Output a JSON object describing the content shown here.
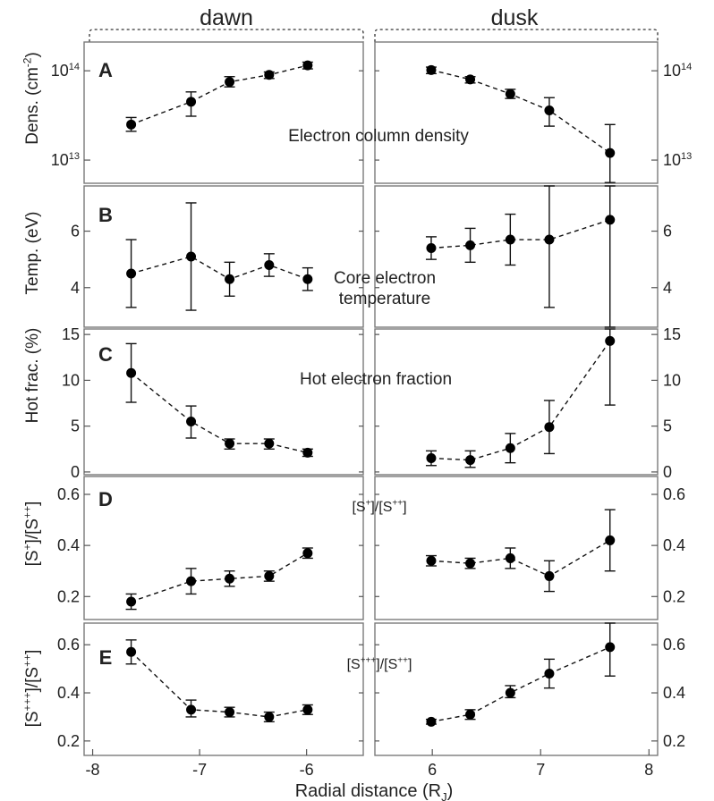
{
  "chart_data": [
    {
      "type": "scatter",
      "panel_letter": "A",
      "ylabel": "Dens. (cm⁻²)",
      "title": "Electron column density",
      "yscale": "log",
      "ylim": [
        5500000000000.0,
        210000000000000.0
      ],
      "yticks": [
        10000000000000.0,
        100000000000000.0
      ],
      "ytick_labels": [
        "10¹³",
        "10¹⁴"
      ],
      "dawn": {
        "x": [
          -7.64,
          -7.08,
          -6.72,
          -6.35,
          -5.99
        ],
        "y": [
          25000000000000.0,
          45000000000000.0,
          75000000000000.0,
          90000000000000.0,
          115000000000000.0
        ],
        "yerr_low": [
          21000000000000.0,
          31000000000000.0,
          66000000000000.0,
          82000000000000.0,
          105000000000000.0
        ],
        "yerr_high": [
          30000000000000.0,
          58000000000000.0,
          86000000000000.0,
          97000000000000.0,
          125000000000000.0
        ]
      },
      "dusk": {
        "x": [
          5.99,
          6.35,
          6.72,
          7.08,
          7.64
        ],
        "y": [
          102000000000000.0,
          80000000000000.0,
          55000000000000.0,
          36000000000000.0,
          12000000000000.0
        ],
        "yerr_low": [
          93000000000000.0,
          73000000000000.0,
          49000000000000.0,
          24000000000000.0,
          5600000000000.0
        ],
        "yerr_high": [
          110000000000000.0,
          86000000000000.0,
          62000000000000.0,
          50000000000000.0,
          25000000000000.0
        ]
      }
    },
    {
      "type": "scatter",
      "panel_letter": "B",
      "ylabel": "Temp. (eV)",
      "title": "Core electron temperature",
      "title_lines": [
        "Core electron",
        "temperature"
      ],
      "ylim": [
        2.6,
        7.6
      ],
      "yticks": [
        4,
        6
      ],
      "ytick_labels": [
        "4",
        "6"
      ],
      "dawn": {
        "x": [
          -7.64,
          -7.08,
          -6.72,
          -6.35,
          -5.99
        ],
        "y": [
          4.5,
          5.1,
          4.3,
          4.8,
          4.3
        ],
        "yerr_low": [
          3.3,
          3.2,
          3.7,
          4.4,
          3.9
        ],
        "yerr_high": [
          5.7,
          7.0,
          4.9,
          5.2,
          4.7
        ]
      },
      "dusk": {
        "x": [
          5.99,
          6.35,
          6.72,
          7.08,
          7.64
        ],
        "y": [
          5.4,
          5.5,
          5.7,
          5.7,
          6.4
        ],
        "yerr_low": [
          5.0,
          4.9,
          4.8,
          3.3,
          2.6
        ],
        "yerr_high": [
          5.8,
          6.1,
          6.6,
          7.6,
          7.6
        ]
      }
    },
    {
      "type": "scatter",
      "panel_letter": "C",
      "ylabel": "Hot frac. (%)",
      "title": "Hot electron fraction",
      "ylim": [
        -0.3,
        15.6
      ],
      "yticks": [
        0,
        5,
        10,
        15
      ],
      "ytick_labels": [
        "0",
        "5",
        "10",
        "15"
      ],
      "dawn": {
        "x": [
          -7.64,
          -7.08,
          -6.72,
          -6.35,
          -5.99
        ],
        "y": [
          10.8,
          5.5,
          3.1,
          3.1,
          2.1
        ],
        "yerr_low": [
          7.6,
          3.7,
          2.5,
          2.5,
          1.7
        ],
        "yerr_high": [
          14.0,
          7.2,
          3.6,
          3.6,
          2.5
        ]
      },
      "dusk": {
        "x": [
          5.99,
          6.35,
          6.72,
          7.08,
          7.64
        ],
        "y": [
          1.5,
          1.3,
          2.6,
          4.9,
          14.3
        ],
        "yerr_low": [
          0.7,
          0.5,
          1.0,
          2.0,
          7.3
        ],
        "yerr_high": [
          2.3,
          2.3,
          4.2,
          7.8,
          15.6
        ]
      }
    },
    {
      "type": "scatter",
      "panel_letter": "D",
      "ylabel": "[S⁺]/[S⁺⁺]",
      "title": "[S⁺]/[S⁺⁺]",
      "ylim": [
        0.11,
        0.67
      ],
      "yticks": [
        0.2,
        0.4,
        0.6
      ],
      "ytick_labels": [
        "0.2",
        "0.4",
        "0.6"
      ],
      "dawn": {
        "x": [
          -7.64,
          -7.08,
          -6.72,
          -6.35,
          -5.99
        ],
        "y": [
          0.18,
          0.26,
          0.27,
          0.28,
          0.37
        ],
        "yerr_low": [
          0.15,
          0.21,
          0.24,
          0.26,
          0.35
        ],
        "yerr_high": [
          0.21,
          0.31,
          0.3,
          0.3,
          0.39
        ]
      },
      "dusk": {
        "x": [
          5.99,
          6.35,
          6.72,
          7.08,
          7.64
        ],
        "y": [
          0.34,
          0.33,
          0.35,
          0.28,
          0.42
        ],
        "yerr_low": [
          0.32,
          0.31,
          0.31,
          0.22,
          0.3
        ],
        "yerr_high": [
          0.36,
          0.35,
          0.39,
          0.34,
          0.54
        ]
      }
    },
    {
      "type": "scatter",
      "panel_letter": "E",
      "ylabel": "[S⁺⁺⁺]/[S⁺⁺]",
      "title": "[S⁺⁺⁺]/[S⁺⁺]",
      "ylim": [
        0.14,
        0.69
      ],
      "yticks": [
        0.2,
        0.4,
        0.6
      ],
      "ytick_labels": [
        "0.2",
        "0.4",
        "0.6"
      ],
      "dawn": {
        "x": [
          -7.64,
          -7.08,
          -6.72,
          -6.35,
          -5.99
        ],
        "y": [
          0.57,
          0.33,
          0.32,
          0.3,
          0.33
        ],
        "yerr_low": [
          0.52,
          0.3,
          0.3,
          0.28,
          0.31
        ],
        "yerr_high": [
          0.62,
          0.37,
          0.34,
          0.32,
          0.35
        ]
      },
      "dusk": {
        "x": [
          5.99,
          6.35,
          6.72,
          7.08,
          7.64
        ],
        "y": [
          0.28,
          0.31,
          0.4,
          0.48,
          0.59
        ],
        "yerr_low": [
          0.27,
          0.29,
          0.38,
          0.42,
          0.47
        ],
        "yerr_high": [
          0.29,
          0.33,
          0.43,
          0.54,
          0.7
        ]
      }
    }
  ],
  "axes": {
    "xlabel": "Radial distance (R",
    "xlabel_sub": "J",
    "xlabel_close": ")",
    "dawn_label": "dawn",
    "dusk_label": "dusk",
    "dawn_xlim": [
      -8.08,
      -5.47
    ],
    "dusk_xlim": [
      5.47,
      8.08
    ],
    "dawn_xticks": [
      -8,
      -7,
      -6
    ],
    "dusk_xticks": [
      6,
      7,
      8
    ]
  }
}
